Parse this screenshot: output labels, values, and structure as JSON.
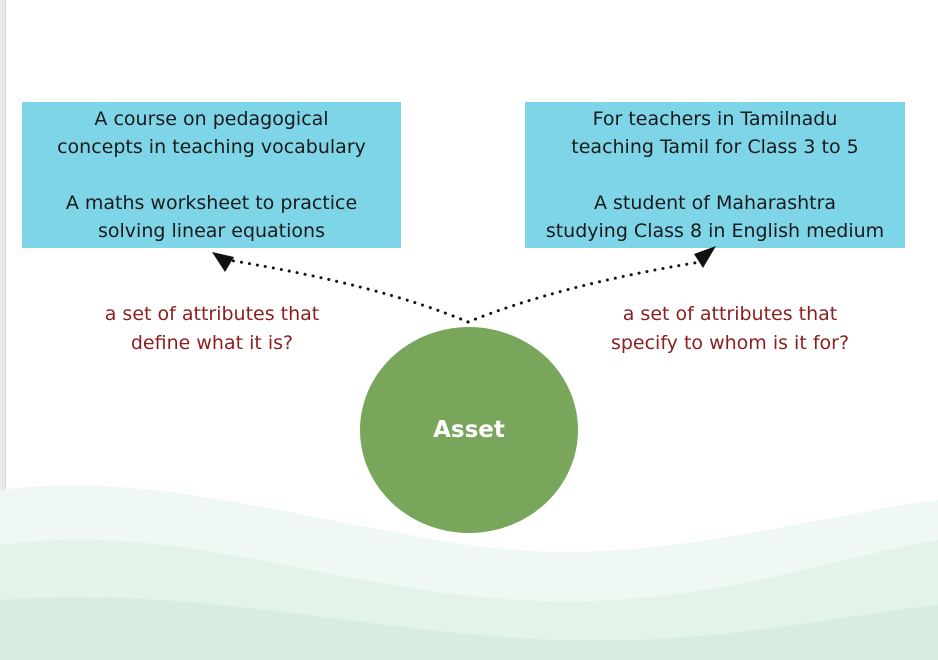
{
  "diagram": {
    "left_box": {
      "lines": [
        "A course on pedagogical",
        "concepts in teaching vocabulary",
        "A maths worksheet to practice",
        "solving linear equations"
      ]
    },
    "right_box": {
      "lines": [
        "For teachers in Tamilnadu",
        "teaching Tamil for Class 3 to 5",
        "A student of Maharashtra",
        "studying Class 8 in English medium"
      ]
    },
    "left_caption": {
      "lines": [
        "a set of attributes that",
        "define what it is?"
      ]
    },
    "right_caption": {
      "lines": [
        "a set of attributes that",
        "specify to whom is it for?"
      ]
    },
    "center_node": {
      "label": "Asset"
    }
  },
  "colors": {
    "box_fill": "#7fd5e8",
    "caption_text": "#8b1e1e",
    "node_fill": "#79a65b",
    "node_text": "#ffffff",
    "background_wave": "#e3f3ea"
  }
}
